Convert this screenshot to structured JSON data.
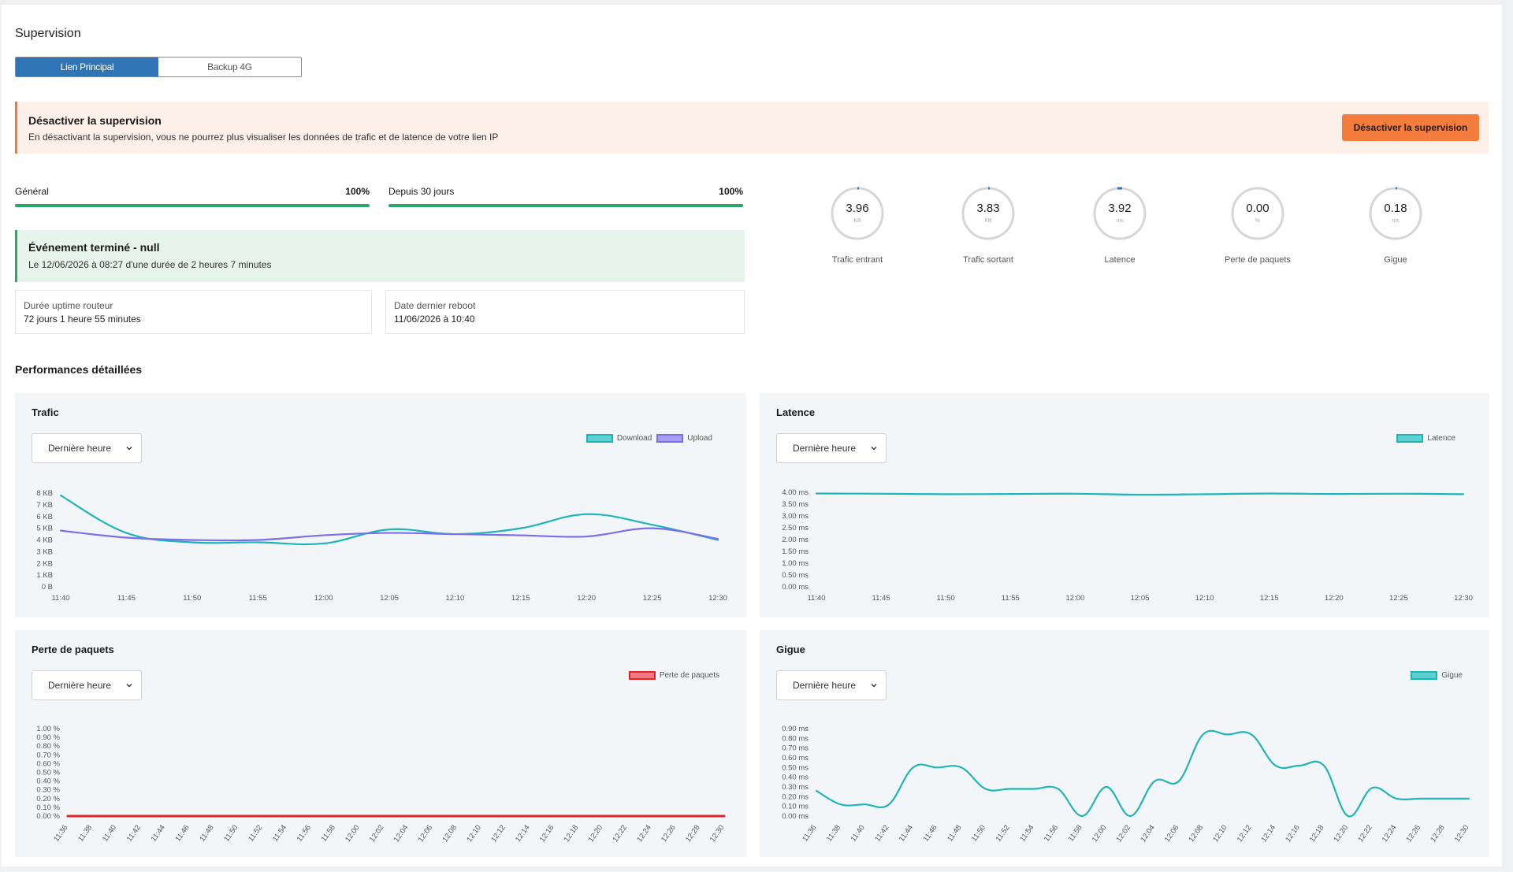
{
  "page": {
    "title": "Supervision"
  },
  "tabs": [
    {
      "label": "Lien Principal",
      "active": true
    },
    {
      "label": "Backup 4G",
      "active": false
    }
  ],
  "banner": {
    "title": "Désactiver la supervision",
    "text": "En désactivant la supervision, vous ne pourrez plus visualiser les données de trafic et de latence de votre lien IP",
    "button": "Désactiver la supervision"
  },
  "progress": [
    {
      "label": "Général",
      "percent_label": "100%",
      "value": 100
    },
    {
      "label": "Depuis 30 jours",
      "percent_label": "100%",
      "value": 100
    }
  ],
  "event": {
    "title": "Événement terminé - null",
    "text": "Le 12/06/2026 à 08:27 d'une durée de 2 heures 7 minutes"
  },
  "info": [
    {
      "label": "Durée uptime routeur",
      "value": "72 jours 1 heure 55 minutes"
    },
    {
      "label": "Date dernier reboot",
      "value": "11/06/2026 à 10:40"
    }
  ],
  "gauges": [
    {
      "value": "3.96",
      "unit": "KB",
      "label": "Trafic entrant"
    },
    {
      "value": "3.83",
      "unit": "KB",
      "label": "Trafic sortant"
    },
    {
      "value": "3.92",
      "unit": "ms",
      "label": "Latence"
    },
    {
      "value": "0.00",
      "unit": "%",
      "label": "Perte de paquets"
    },
    {
      "value": "0.18",
      "unit": "ms",
      "label": "Gigue"
    }
  ],
  "colors": {
    "primary": "#2f74b5",
    "accent": "#f47c3c",
    "success": "#2ea66a",
    "teal": "#1fb5b8",
    "purple": "#7d6ee8",
    "red": "#e0242e"
  },
  "section_title": "Performances détaillées",
  "chart_data": [
    {
      "type": "line",
      "title": "Trafic",
      "select": "Dernière heure",
      "x": [
        "11:40",
        "11:45",
        "11:50",
        "11:55",
        "12:00",
        "12:05",
        "12:10",
        "12:15",
        "12:20",
        "12:25",
        "12:30"
      ],
      "y_ticks": [
        "8 KB",
        "7 KB",
        "6 KB",
        "5 KB",
        "4 KB",
        "3 KB",
        "2 KB",
        "1 KB",
        "0 B"
      ],
      "ylim": [
        0,
        8
      ],
      "series": [
        {
          "name": "Download",
          "color": "#1fb5b8",
          "values": [
            7.8,
            4.6,
            3.8,
            3.8,
            3.7,
            4.9,
            4.5,
            5.0,
            6.2,
            5.3,
            4.0
          ]
        },
        {
          "name": "Upload",
          "color": "#7d6ee8",
          "values": [
            4.8,
            4.2,
            4.0,
            4.0,
            4.4,
            4.6,
            4.5,
            4.4,
            4.3,
            5.0,
            4.1
          ]
        }
      ]
    },
    {
      "type": "line",
      "title": "Latence",
      "select": "Dernière heure",
      "x": [
        "11:40",
        "11:45",
        "11:50",
        "11:55",
        "12:00",
        "12:05",
        "12:10",
        "12:15",
        "12:20",
        "12:25",
        "12:30"
      ],
      "y_ticks": [
        "4.00 ms",
        "3.50 ms",
        "3.00 ms",
        "2.50 ms",
        "2.00 ms",
        "1.50 ms",
        "1.00 ms",
        "0.50 ms",
        "0.00 ms"
      ],
      "ylim": [
        0,
        4
      ],
      "series": [
        {
          "name": "Latence",
          "color": "#1fb5b8",
          "values": [
            3.95,
            3.94,
            3.92,
            3.93,
            3.94,
            3.9,
            3.92,
            3.95,
            3.93,
            3.94,
            3.92
          ]
        }
      ]
    },
    {
      "type": "line",
      "title": "Perte de paquets",
      "select": "Dernière heure",
      "x": [
        "11:36",
        "11:38",
        "11:40",
        "11:42",
        "11:44",
        "11:46",
        "11:48",
        "11:50",
        "11:52",
        "11:54",
        "11:56",
        "11:58",
        "12:00",
        "12:02",
        "12:04",
        "12:06",
        "12:08",
        "12:10",
        "12:12",
        "12:14",
        "12:16",
        "12:18",
        "12:20",
        "12:22",
        "12:24",
        "12:26",
        "12:28",
        "12:30"
      ],
      "y_ticks": [
        "1.00 %",
        "0.90 %",
        "0.80 %",
        "0.70 %",
        "0.60 %",
        "0.50 %",
        "0.40 %",
        "0.30 %",
        "0.20 %",
        "0.10 %",
        "0.00 %"
      ],
      "ylim": [
        0,
        1
      ],
      "series": [
        {
          "name": "Perte de paquets",
          "color": "#e0242e",
          "values": [
            0,
            0,
            0,
            0,
            0,
            0,
            0,
            0,
            0,
            0,
            0,
            0,
            0,
            0,
            0,
            0,
            0,
            0,
            0,
            0,
            0,
            0,
            0,
            0,
            0,
            0,
            0,
            0
          ]
        }
      ]
    },
    {
      "type": "line",
      "title": "Gigue",
      "select": "Dernière heure",
      "x": [
        "11:36",
        "11:38",
        "11:40",
        "11:42",
        "11:44",
        "11:46",
        "11:48",
        "11:50",
        "11:52",
        "11:54",
        "11:56",
        "11:58",
        "12:00",
        "12:02",
        "12:04",
        "12:06",
        "12:08",
        "12:10",
        "12:12",
        "12:14",
        "12:16",
        "12:18",
        "12:20",
        "12:22",
        "12:24",
        "12:26",
        "12:28",
        "12:30"
      ],
      "y_ticks": [
        "0.90 ms",
        "0.80 ms",
        "0.70 ms",
        "0.60 ms",
        "0.50 ms",
        "0.40 ms",
        "0.30 ms",
        "0.20 ms",
        "0.10 ms",
        "0.00 ms"
      ],
      "ylim": [
        0,
        0.9
      ],
      "series": [
        {
          "name": "Gigue",
          "color": "#1fb5b8",
          "values": [
            0.26,
            0.12,
            0.12,
            0.12,
            0.5,
            0.5,
            0.5,
            0.28,
            0.28,
            0.28,
            0.28,
            0.0,
            0.3,
            0.0,
            0.36,
            0.36,
            0.84,
            0.84,
            0.84,
            0.52,
            0.52,
            0.52,
            0.0,
            0.29,
            0.18,
            0.18,
            0.18,
            0.18
          ]
        }
      ]
    }
  ]
}
